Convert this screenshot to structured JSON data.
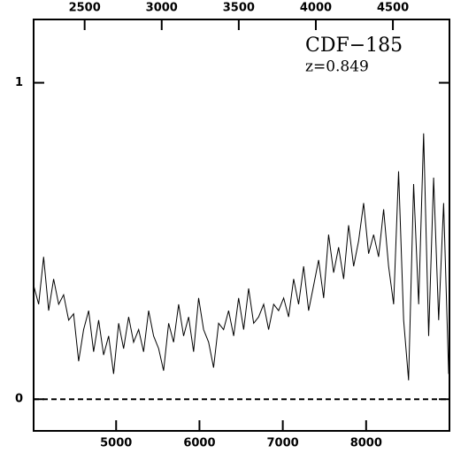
{
  "chart_data": {
    "type": "line",
    "annotations": [
      "CDF−185",
      "z=0.849"
    ],
    "x": [
      4010,
      4070,
      4130,
      4190,
      4250,
      4310,
      4370,
      4430,
      4490,
      4550,
      4610,
      4670,
      4730,
      4790,
      4850,
      4910,
      4970,
      5030,
      5090,
      5150,
      5210,
      5270,
      5330,
      5390,
      5450,
      5510,
      5570,
      5630,
      5690,
      5750,
      5810,
      5870,
      5930,
      5990,
      6050,
      6110,
      6170,
      6230,
      6290,
      6350,
      6410,
      6470,
      6530,
      6590,
      6650,
      6710,
      6770,
      6830,
      6890,
      6950,
      7010,
      7070,
      7130,
      7190,
      7250,
      7310,
      7370,
      7430,
      7490,
      7550,
      7610,
      7670,
      7730,
      7790,
      7850,
      7910,
      7970,
      8030,
      8090,
      8150,
      8210,
      8270,
      8330,
      8390,
      8450,
      8510,
      8570,
      8630,
      8690,
      8750,
      8810,
      8870,
      8930,
      8990
    ],
    "series": [
      {
        "color": "#000000",
        "values": [
          0.36,
          0.3,
          0.45,
          0.28,
          0.38,
          0.3,
          0.33,
          0.25,
          0.27,
          0.12,
          0.22,
          0.28,
          0.15,
          0.25,
          0.14,
          0.2,
          0.08,
          0.24,
          0.16,
          0.26,
          0.18,
          0.22,
          0.15,
          0.28,
          0.2,
          0.16,
          0.09,
          0.24,
          0.18,
          0.3,
          0.2,
          0.26,
          0.15,
          0.32,
          0.22,
          0.18,
          0.1,
          0.24,
          0.22,
          0.28,
          0.2,
          0.32,
          0.22,
          0.35,
          0.24,
          0.26,
          0.3,
          0.22,
          0.3,
          0.28,
          0.32,
          0.26,
          0.38,
          0.3,
          0.42,
          0.28,
          0.36,
          0.44,
          0.32,
          0.52,
          0.4,
          0.48,
          0.38,
          0.55,
          0.42,
          0.5,
          0.62,
          0.46,
          0.52,
          0.45,
          0.6,
          0.42,
          0.3,
          0.72,
          0.25,
          0.06,
          0.68,
          0.3,
          0.84,
          0.2,
          0.7,
          0.25,
          0.62,
          0.08
        ]
      }
    ],
    "xlim": [
      4010,
      9000
    ],
    "xticks": [
      5000,
      6000,
      7000,
      8000
    ],
    "x2lim": [
      2169,
      4867
    ],
    "x2ticks": [
      2500,
      3000,
      3500,
      4000,
      4500
    ],
    "ylim": [
      -0.1,
      1.2
    ],
    "yticks": [
      0,
      1
    ],
    "zero_line": 0
  }
}
